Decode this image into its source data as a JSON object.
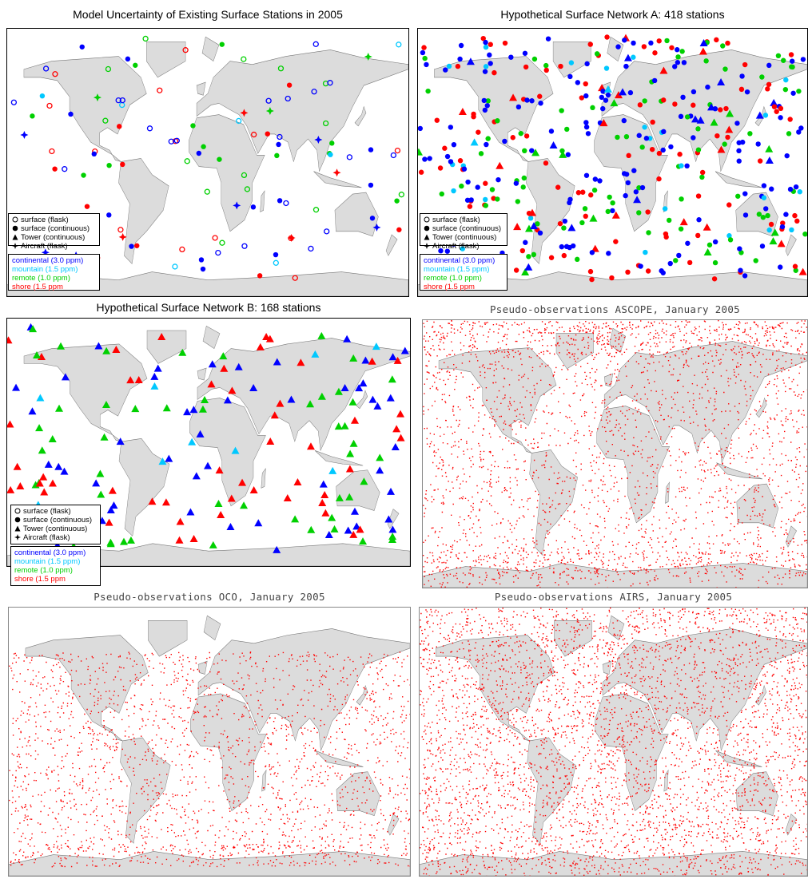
{
  "panels": [
    {
      "title": "Model Uncertainty of Existing Surface Stations in 2005",
      "legend": {
        "symbols": [
          "surface (flask)",
          "surface (continuous)",
          "Tower (continuous)",
          "Aircraft (flask)"
        ],
        "regions": [
          "continental (3.0 ppm)",
          "mountain (1.5 ppm)",
          "remote (1.0 ppm)",
          "shore (1.5 ppm"
        ]
      }
    },
    {
      "title": "Hypothetical Surface Network A: 418 stations",
      "legend": {
        "symbols": [
          "surface (flask)",
          "surface (continuous)",
          "Tower (continuous)",
          "Aircraft (flask)"
        ],
        "regions": [
          "continental (3.0 ppm)",
          "mountain (1.5 ppm)",
          "remote (1.0 ppm)",
          "shore (1.5 ppm"
        ]
      }
    },
    {
      "title": "Hypothetical Surface Network B: 168 stations",
      "legend": {
        "symbols": [
          "surface (flask)",
          "surface (continuous)",
          "Tower (continuous)",
          "Aircraft (flask)"
        ],
        "regions": [
          "continental (3.0 ppm)",
          "mountain (1.5 ppm)",
          "remote (1.0 ppm)",
          "shore (1.5 ppm"
        ]
      }
    },
    {
      "title": "Pseudo-observations ASCOPE, January 2005"
    },
    {
      "title": "Pseudo-observations OCO, January 2005"
    },
    {
      "title": "Pseudo-observations AIRS, January 2005"
    }
  ]
}
